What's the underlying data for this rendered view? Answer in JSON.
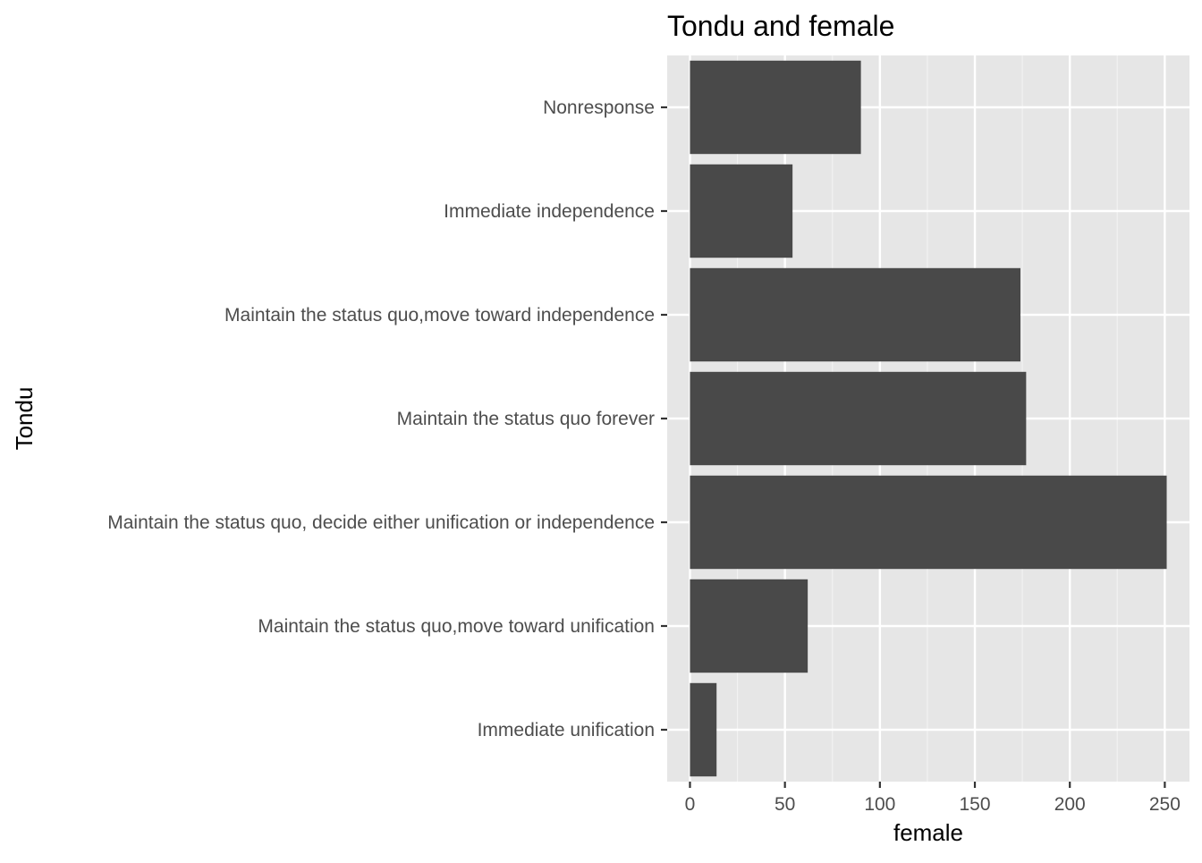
{
  "chart_data": {
    "type": "bar",
    "orientation": "horizontal",
    "title": "Tondu and  female",
    "xlabel": "female",
    "ylabel": "Tondu",
    "categories": [
      "Nonresponse",
      "Immediate independence",
      "Maintain the status quo,move toward independence",
      "Maintain the status quo forever",
      "Maintain the status quo, decide either unification or independence",
      "Maintain the status quo,move toward unification",
      "Immediate unification"
    ],
    "values": [
      90,
      54,
      174,
      177,
      251,
      62,
      14
    ],
    "xlim": [
      -12,
      263
    ],
    "xticks": [
      0,
      50,
      100,
      150,
      200,
      250
    ],
    "grid": true,
    "legend": "none",
    "colors": {
      "bar": "#494949",
      "panel": "#e6e6e6",
      "grid_major": "#ffffff",
      "grid_minor": "#f2f2f2",
      "text": "#4d4d4d",
      "title": "#000000"
    }
  }
}
